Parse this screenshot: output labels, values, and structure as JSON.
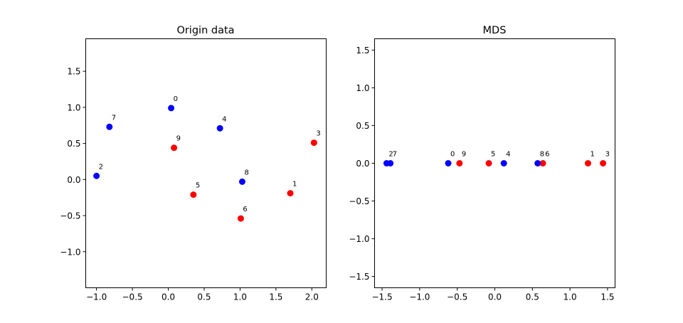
{
  "chart_data": [
    {
      "type": "scatter",
      "title": "Origin data",
      "xlim": [
        -1.15,
        2.2
      ],
      "ylim": [
        -1.5,
        1.95
      ],
      "xticks": [
        -1.0,
        -0.5,
        0.0,
        0.5,
        1.0,
        1.5,
        2.0
      ],
      "xtick_labels": [
        "−1.0",
        "−0.5",
        "0.0",
        "0.5",
        "1.0",
        "1.5",
        "2.0"
      ],
      "yticks": [
        -1.0,
        -0.5,
        0.0,
        0.5,
        1.0,
        1.5
      ],
      "ytick_labels": [
        "−1.0",
        "−0.5",
        "0.0",
        "0.5",
        "1.0",
        "1.5"
      ],
      "grid": false,
      "points": [
        {
          "label": "0",
          "x": 0.04,
          "y": 0.99,
          "color": "#0000ff"
        },
        {
          "label": "1",
          "x": 1.7,
          "y": -0.19,
          "color": "#ff0000"
        },
        {
          "label": "2",
          "x": -1.0,
          "y": 0.05,
          "color": "#0000ff"
        },
        {
          "label": "3",
          "x": 2.03,
          "y": 0.51,
          "color": "#ff0000"
        },
        {
          "label": "4",
          "x": 0.72,
          "y": 0.71,
          "color": "#0000ff"
        },
        {
          "label": "5",
          "x": 0.35,
          "y": -0.21,
          "color": "#ff0000"
        },
        {
          "label": "6",
          "x": 1.01,
          "y": -0.54,
          "color": "#ff0000"
        },
        {
          "label": "7",
          "x": -0.82,
          "y": 0.73,
          "color": "#0000ff"
        },
        {
          "label": "8",
          "x": 1.03,
          "y": -0.03,
          "color": "#0000ff"
        },
        {
          "label": "9",
          "x": 0.08,
          "y": 0.44,
          "color": "#ff0000"
        }
      ]
    },
    {
      "type": "scatter",
      "title": "MDS",
      "xlim": [
        -1.6,
        1.6
      ],
      "ylim": [
        -1.65,
        1.65
      ],
      "xticks": [
        -1.5,
        -1.0,
        -0.5,
        0.0,
        0.5,
        1.0,
        1.5
      ],
      "xtick_labels": [
        "−1.5",
        "−1.0",
        "−0.5",
        "0.0",
        "0.5",
        "1.0",
        "1.5"
      ],
      "yticks": [
        -1.5,
        -1.0,
        -0.5,
        0.0,
        0.5,
        1.0,
        1.5
      ],
      "ytick_labels": [
        "−1.5",
        "−1.0",
        "−0.5",
        "0.0",
        "0.5",
        "1.0",
        "1.5"
      ],
      "grid": false,
      "points": [
        {
          "label": "0",
          "x": -0.62,
          "y": 0.0,
          "color": "#0000ff"
        },
        {
          "label": "1",
          "x": 1.24,
          "y": 0.0,
          "color": "#ff0000"
        },
        {
          "label": "2",
          "x": -1.44,
          "y": 0.0,
          "color": "#0000ff"
        },
        {
          "label": "3",
          "x": 1.44,
          "y": 0.0,
          "color": "#ff0000"
        },
        {
          "label": "4",
          "x": 0.12,
          "y": 0.0,
          "color": "#0000ff"
        },
        {
          "label": "5",
          "x": -0.08,
          "y": 0.0,
          "color": "#ff0000"
        },
        {
          "label": "6",
          "x": 0.64,
          "y": 0.0,
          "color": "#ff0000"
        },
        {
          "label": "7",
          "x": -1.39,
          "y": 0.0,
          "color": "#0000ff"
        },
        {
          "label": "8",
          "x": 0.57,
          "y": 0.0,
          "color": "#0000ff"
        },
        {
          "label": "9",
          "x": -0.47,
          "y": 0.0,
          "color": "#ff0000"
        }
      ]
    }
  ]
}
